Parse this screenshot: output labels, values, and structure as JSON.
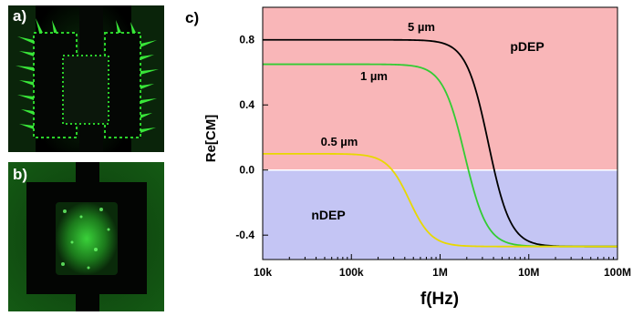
{
  "panels": {
    "a": {
      "letter": "a)"
    },
    "b": {
      "letter": "b)"
    },
    "c": {
      "letter": "c)"
    }
  },
  "colors": {
    "microscopy_green": "#2bd12b",
    "pdep_region": "#f9b6b8",
    "ndep_region": "#c4c5f4",
    "curve_5um": "#000000",
    "curve_1um": "#33cc33",
    "curve_05um": "#e8d800"
  },
  "chart_data": {
    "type": "line",
    "title": "",
    "xlabel": "f(Hz)",
    "ylabel": "Re[CM]",
    "xscale": "log",
    "xlim": [
      10000,
      100000000
    ],
    "ylim": [
      -0.55,
      1.0
    ],
    "xticks": [
      10000,
      100000,
      1000000,
      10000000,
      100000000
    ],
    "xtick_labels": [
      "10k",
      "100k",
      "1M",
      "10M",
      "100M"
    ],
    "yticks": [
      0.8,
      0.4,
      0.0,
      -0.4
    ],
    "ytick_labels": [
      "0.8",
      "0.4",
      "0.0",
      "-0.4"
    ],
    "regions": [
      {
        "label": "pDEP",
        "y_from": 0.0,
        "y_to": 1.0
      },
      {
        "label": "nDEP",
        "y_from": -0.55,
        "y_to": 0.0
      }
    ],
    "series": [
      {
        "name": "5 µm",
        "high": 0.8,
        "low": -0.47,
        "f_cross": 3500000,
        "width_decades": 0.4
      },
      {
        "name": "1 µm",
        "high": 0.65,
        "low": -0.47,
        "f_cross": 1900000,
        "width_decades": 0.4
      },
      {
        "name": "0.5 µm",
        "high": 0.1,
        "low": -0.47,
        "f_cross": 450000,
        "width_decades": 0.4
      }
    ]
  }
}
